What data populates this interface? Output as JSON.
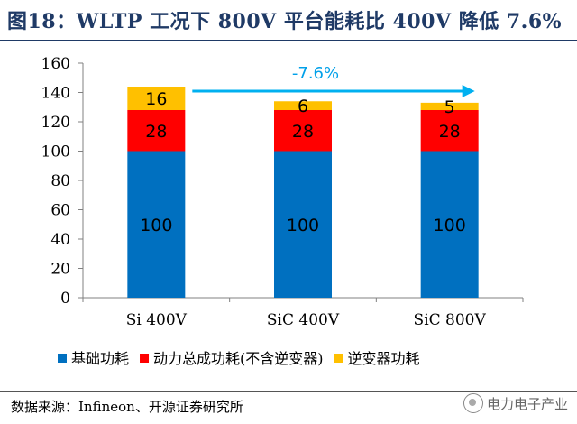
{
  "header": {
    "title": "图18：WLTP 工况下 800V 平台能耗比 400V 降低 7.6%"
  },
  "footer": {
    "source": "数据来源：Infineon、开源证券研究所",
    "watermark": "电力电子产业"
  },
  "chart_data": {
    "type": "bar",
    "stacked": true,
    "categories": [
      "Si 400V",
      "SiC 400V",
      "SiC 800V"
    ],
    "series": [
      {
        "name": "基础功耗",
        "values": [
          100,
          100,
          100
        ],
        "color": "#0070c0"
      },
      {
        "name": "动力总成功耗(不含逆变器)",
        "values": [
          28,
          28,
          28
        ],
        "color": "#ff0000"
      },
      {
        "name": "逆变器功耗",
        "values": [
          16,
          6,
          5
        ],
        "color": "#ffc000"
      }
    ],
    "ylim": [
      0,
      160
    ],
    "yticks": [
      0,
      20,
      40,
      60,
      80,
      100,
      120,
      140,
      160
    ],
    "grid": false,
    "legend_position": "bottom",
    "annotation": {
      "text": "-7.6%",
      "color": "#00a0e9",
      "arrow_color": "#00b0f0"
    }
  }
}
